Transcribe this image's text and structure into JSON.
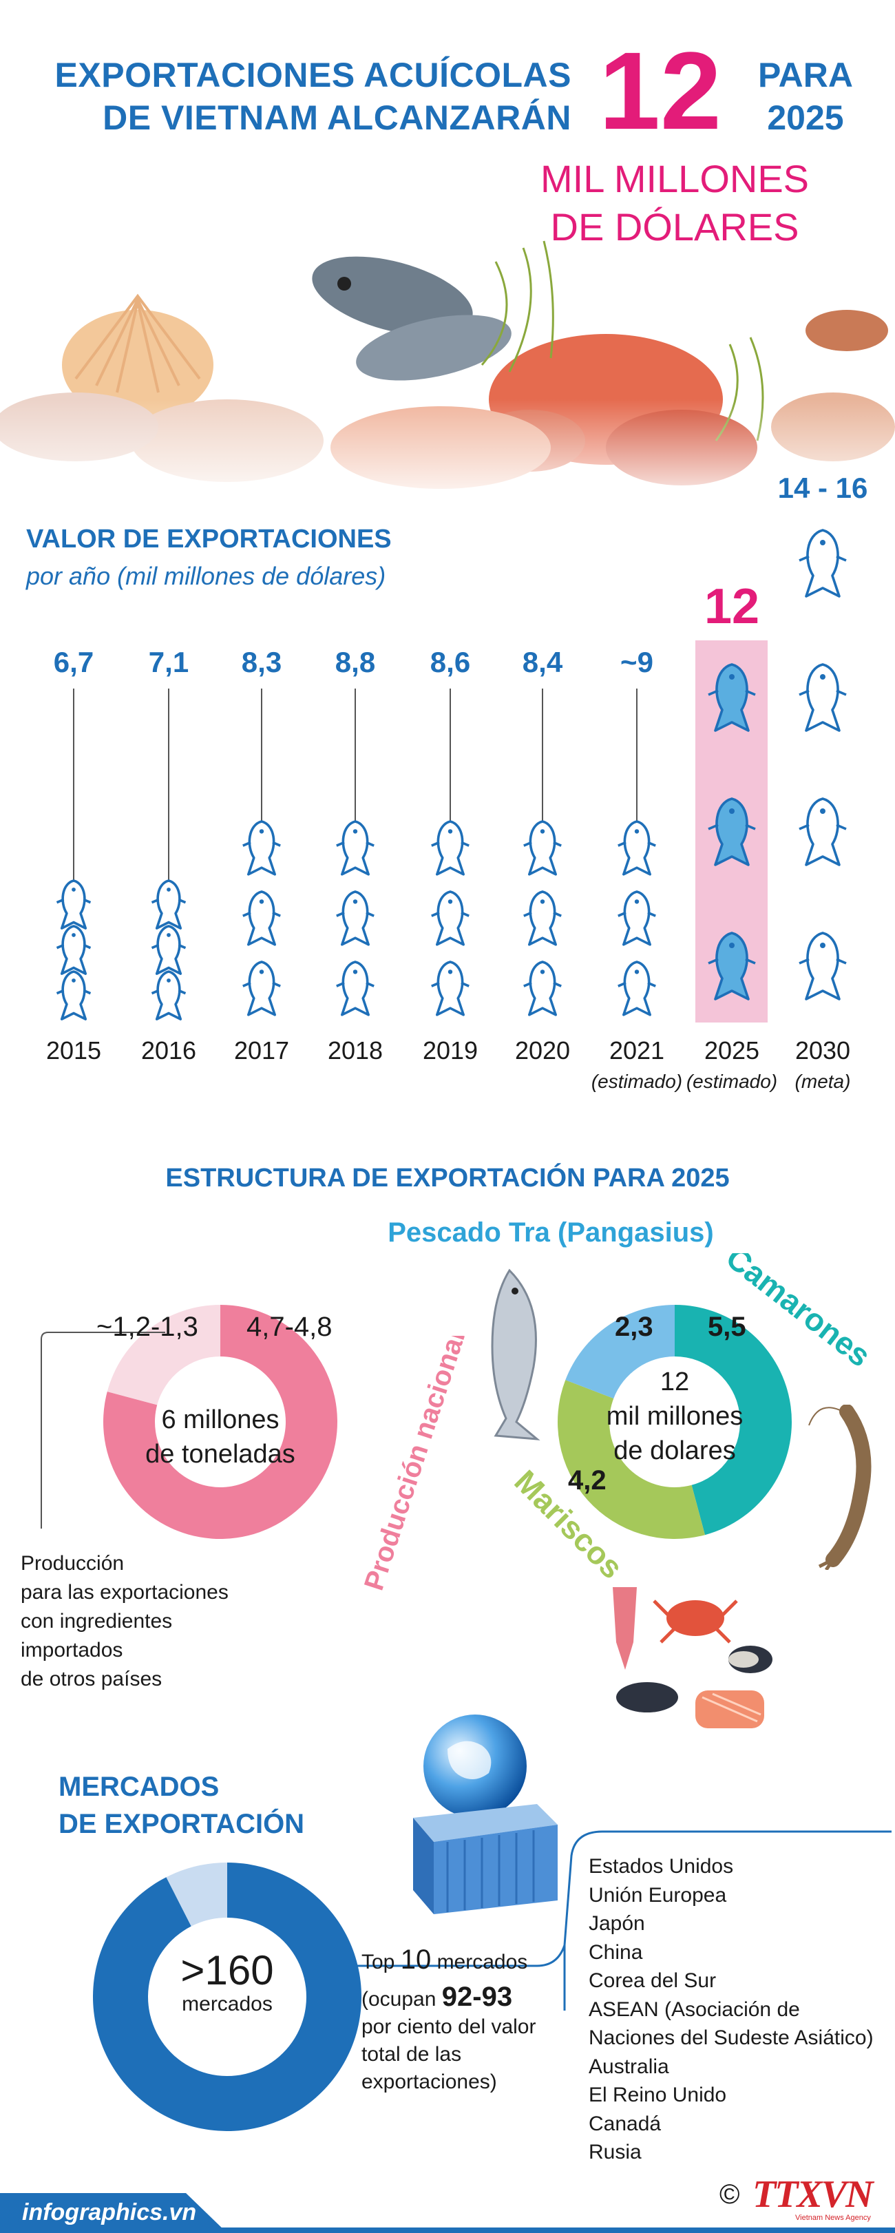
{
  "header": {
    "title_line1": "EXPORTACIONES ACUÍCOLAS",
    "title_line2": "DE VIETNAM ALCANZARÁN",
    "big_number": "12",
    "para_line1": "PARA",
    "para_line2": "2025",
    "sub_line1": "MIL MILLONES",
    "sub_line2": "DE DÓLARES"
  },
  "export_value": {
    "title": "VALOR DE EXPORTACIONES",
    "subtitle": "por año (mil millones de dólares)"
  },
  "chart_data": {
    "type": "bar",
    "title": "VALOR DE EXPORTACIONES",
    "ylabel": "por año (mil millones de dólares)",
    "categories": [
      "2015",
      "2016",
      "2017",
      "2018",
      "2019",
      "2020",
      "2021",
      "2025",
      "2030"
    ],
    "value_labels": [
      "6,7",
      "7,1",
      "8,3",
      "8,8",
      "8,6",
      "8,4",
      "~9",
      "12",
      "14 - 16"
    ],
    "values": [
      6.7,
      7.1,
      8.3,
      8.8,
      8.6,
      8.4,
      9,
      12,
      15
    ],
    "notes": [
      "",
      "",
      "",
      "",
      "",
      "",
      "(estimado)",
      "(estimado)",
      "(meta)"
    ],
    "highlight": "2025"
  },
  "structure": {
    "title": "ESTRUCTURA DE EXPORTACIÓN PARA 2025",
    "left_donut": {
      "center_line1": "6 millones",
      "center_line2": "de toneladas",
      "label_imported": "~1,2-1,3",
      "label_national": "4,7-4,8",
      "national_caption": "Producción nacional",
      "imported_value": 1.25,
      "national_value": 4.75,
      "note_lines": [
        "Producción",
        "para las exportaciones",
        "con ingredientes",
        "importados",
        "de otros países"
      ]
    },
    "right_donut": {
      "center_line1": "12",
      "center_line2": "mil millones",
      "center_line3": "de dolares",
      "tra_label": "Pescado Tra (Pangasius)",
      "shrimp_label": "Camarones",
      "seafood_label": "Mariscos",
      "tra_value": "2,3",
      "shrimp_value": "5,5",
      "seafood_value": "4,2",
      "tra_num": 2.3,
      "shrimp_num": 5.5,
      "seafood_num": 4.2
    }
  },
  "markets": {
    "title_line1": "MERCADOS",
    "title_line2": "DE EXPORTACIÓN",
    "center_num": ">160",
    "center_sub": "mercados",
    "top_prefix": "Top",
    "top_num": "10",
    "top_suffix": "mercados",
    "occupy_prefix": "(ocupan",
    "occupy_value": "92-93",
    "occupy_rest_line1": "por ciento del valor",
    "occupy_rest_line2": "total de las",
    "occupy_rest_line3": "exportaciones)",
    "share_top10": 92.5,
    "countries": [
      "Estados Unidos",
      "Unión Europea",
      "Japón",
      "China",
      "Corea del Sur",
      "ASEAN (Asociación de",
      "Naciones del Sudeste Asiático)",
      "Australia",
      "El Reino Unido",
      "Canadá",
      "Rusia"
    ]
  },
  "footer": {
    "site": "infographics.vn",
    "logo_text": "TTXVN",
    "logo_sub": "Vietnam News Agency",
    "copyright": "©"
  },
  "colors": {
    "blue": "#1e6fb8",
    "pink": "#e31c79",
    "fish_fill": "#5aaee0",
    "donut_pink": "#ef7f9c",
    "donut_light_pink": "#f8dbe3",
    "teal": "#19b3b1",
    "green": "#a5c85a",
    "sky": "#79bfe9"
  }
}
